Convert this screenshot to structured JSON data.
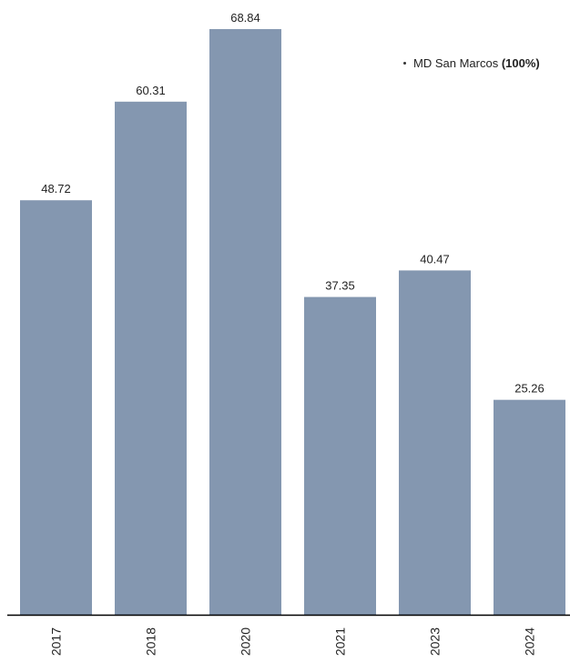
{
  "chart_data": {
    "type": "bar",
    "categories": [
      "2017",
      "2018",
      "2020",
      "2021",
      "2023",
      "2024"
    ],
    "series": [
      {
        "name": "MD San Marcos",
        "values": [
          48.72,
          60.31,
          68.84,
          37.35,
          40.47,
          25.26
        ]
      }
    ],
    "value_labels": [
      "48.72",
      "60.31",
      "68.84",
      "37.35",
      "40.47",
      "25.26"
    ],
    "ylim": [
      0,
      68.84
    ],
    "grid": false,
    "legend_position": "top-right",
    "bar_color": "#8497b0",
    "axis_color": "#000000"
  },
  "legend": {
    "label": "MD San Marcos",
    "share": "(100%)"
  }
}
